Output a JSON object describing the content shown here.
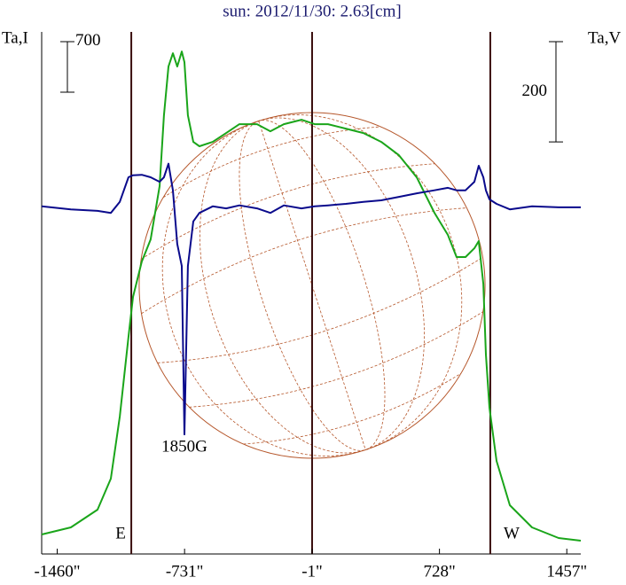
{
  "chart_data": {
    "type": "line",
    "title": "sun: 2012/11/30: 2.63[cm]",
    "ylabel": "Ta,I",
    "y2label": "Ta,V",
    "x": [
      -1549,
      -1382,
      -1229,
      -1153,
      -1102,
      -1052,
      -1026,
      -976,
      -925,
      -874,
      -849,
      -823,
      -798,
      -773,
      -747,
      -732,
      -712,
      -681,
      -646,
      -570,
      -493,
      -417,
      -316,
      -240,
      -163,
      -62,
      14,
      90,
      192,
      293,
      395,
      496,
      598,
      699,
      776,
      826,
      877,
      928,
      953,
      979,
      994,
      1014,
      1055,
      1131,
      1258,
      1410,
      1537
    ],
    "series": [
      {
        "name": "Ta,I",
        "color": "#1aa51a",
        "values": [
          86,
          184,
          430,
          860,
          1719,
          2824,
          3377,
          3868,
          4175,
          4912,
          5894,
          6570,
          6754,
          6570,
          6779,
          6631,
          5894,
          5526,
          5465,
          5526,
          5649,
          5772,
          5772,
          5673,
          5772,
          5833,
          5772,
          5772,
          5710,
          5649,
          5526,
          5342,
          5035,
          4544,
          4237,
          3930,
          3930,
          4052,
          4151,
          3561,
          2579,
          1842,
          1105,
          491,
          184,
          37,
          0
        ]
      },
      {
        "name": "Ta,V",
        "color": "#0a0a8c",
        "axis": "y2",
        "values": [
          2,
          -4,
          -7,
          -11,
          11,
          60,
          64,
          65,
          60,
          51,
          60,
          87,
          34,
          -73,
          -117,
          -453,
          -117,
          -28,
          -11,
          2,
          -2,
          4,
          -2,
          -11,
          4,
          -2,
          2,
          4,
          7,
          11,
          14,
          21,
          28,
          34,
          39,
          34,
          34,
          51,
          83,
          60,
          34,
          16,
          7,
          -4,
          2,
          0,
          0
        ]
      }
    ],
    "xlim": [
      -1549,
      1537
    ],
    "xticks": [
      {
        "value": -1460,
        "label": "-1460\""
      },
      {
        "value": -731,
        "label": "-731\""
      },
      {
        "value": -1,
        "label": "-1\""
      },
      {
        "value": 728,
        "label": "728\""
      },
      {
        "value": 1457,
        "label": "1457\""
      }
    ],
    "ylim": [
      0,
      7050
    ],
    "y2lim": [
      -665,
      350
    ],
    "scale_bars": [
      {
        "axis": "y",
        "value": 700
      },
      {
        "axis": "y2",
        "value": 200
      }
    ],
    "limb_lines": [
      {
        "x": -1036,
        "label": "E"
      },
      {
        "x": -1
      },
      {
        "x": 1019,
        "label": "W"
      }
    ],
    "sun_disk": {
      "x": -1,
      "radius": 990
    },
    "annotations": [
      {
        "text": "1850G",
        "x": -732
      }
    ]
  }
}
